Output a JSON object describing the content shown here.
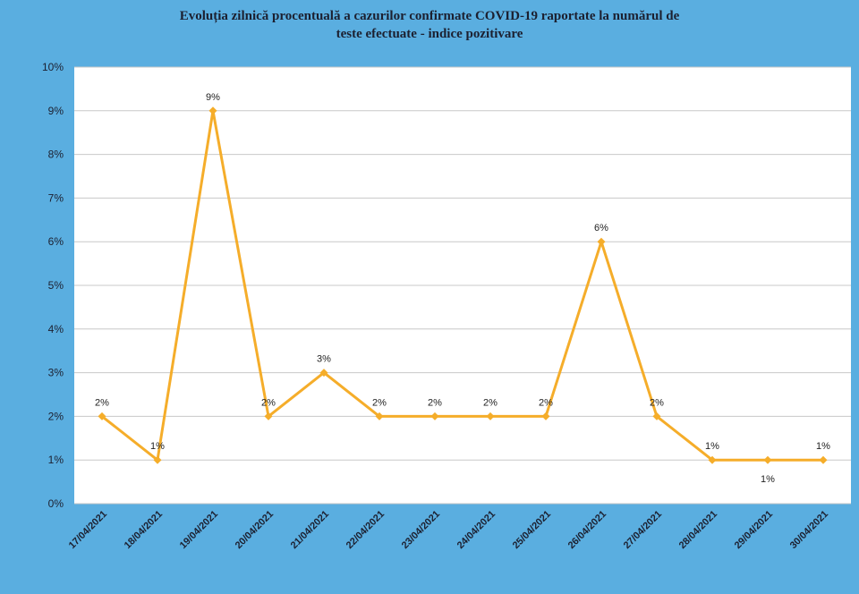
{
  "chart_data": {
    "type": "line",
    "title": "Evoluția zilnică procentuală a cazurilor confirmate COVID-19 raportate la numărul de teste efectuate - indice pozitivare",
    "title_lines": [
      "Evoluția zilnică procentuală a cazurilor confirmate COVID-19 raportate la numărul de",
      "teste efectuate - indice pozitivare"
    ],
    "categories": [
      "17/04/2021",
      "18/04/2021",
      "19/04/2021",
      "20/04/2021",
      "21/04/2021",
      "22/04/2021",
      "23/04/2021",
      "24/04/2021",
      "25/04/2021",
      "26/04/2021",
      "27/04/2021",
      "28/04/2021",
      "29/04/2021",
      "30/04/2021"
    ],
    "values": [
      2,
      1,
      9,
      2,
      3,
      2,
      2,
      2,
      2,
      6,
      2,
      1,
      1,
      1
    ],
    "data_labels": [
      "2%",
      "1%",
      "9%",
      "2%",
      "3%",
      "2%",
      "2%",
      "2%",
      "2%",
      "6%",
      "2%",
      "1%",
      "1%",
      "1%"
    ],
    "y_ticks": [
      "0%",
      "1%",
      "2%",
      "3%",
      "4%",
      "5%",
      "6%",
      "7%",
      "8%",
      "9%",
      "10%"
    ],
    "ylim": [
      0,
      10
    ],
    "y_unit": "%",
    "grid": true,
    "legend": "none",
    "xlabel": "",
    "ylabel": "",
    "colors": {
      "background": "#5aaee0",
      "plot_area": "#ffffff",
      "line": "#f5ad2a",
      "grid": "#c8c8c8"
    }
  }
}
